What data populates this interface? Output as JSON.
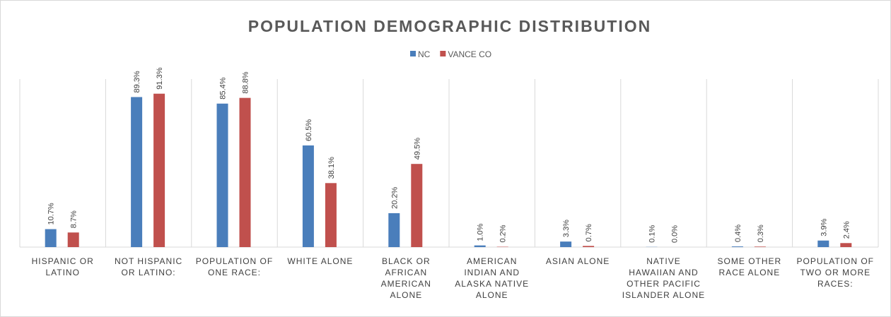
{
  "chart_data": {
    "type": "bar",
    "title": "POPULATION DEMOGRAPHIC DISTRIBUTION",
    "categories": [
      "HISPANIC OR LATINO",
      "NOT HISPANIC OR LATINO:",
      "POPULATION OF ONE RACE:",
      "WHITE ALONE",
      "BLACK OR AFRICAN AMERICAN ALONE",
      "AMERICAN INDIAN AND ALASKA NATIVE ALONE",
      "ASIAN ALONE",
      "NATIVE HAWAIIAN AND OTHER PACIFIC ISLANDER ALONE",
      "SOME OTHER RACE ALONE",
      "POPULATION OF TWO OR MORE RACES:"
    ],
    "series": [
      {
        "name": "NC",
        "color": "#4a7ebb",
        "values": [
          10.7,
          89.3,
          85.4,
          60.5,
          20.2,
          1.0,
          3.3,
          0.1,
          0.4,
          3.9
        ],
        "value_labels": [
          "10.7%",
          "89.3%",
          "85.4%",
          "60.5%",
          "20.2%",
          "1.0%",
          "3.3%",
          "0.1%",
          "0.4%",
          "3.9%"
        ]
      },
      {
        "name": "VANCE CO",
        "color": "#c0504d",
        "values": [
          8.7,
          91.3,
          88.8,
          38.1,
          49.5,
          0.2,
          0.7,
          0.0,
          0.3,
          2.4
        ],
        "value_labels": [
          "8.7%",
          "91.3%",
          "88.8%",
          "38.1%",
          "49.5%",
          "0.2%",
          "0.7%",
          "0.0%",
          "0.3%",
          "2.4%"
        ]
      }
    ],
    "ylim": [
      0,
      100
    ],
    "legend": "top"
  }
}
